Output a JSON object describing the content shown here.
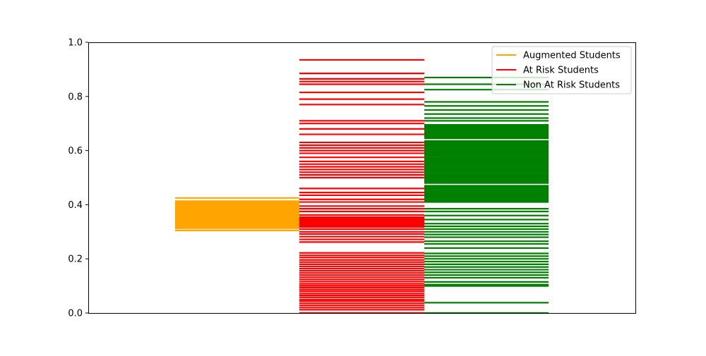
{
  "chart_data": {
    "type": "strip",
    "title": "",
    "xlabel": "",
    "ylabel": "",
    "ylim": [
      0,
      1
    ],
    "yticks": [
      "0.0",
      "0.2",
      "0.4",
      "0.6",
      "0.8",
      "1.0"
    ],
    "legend_position": "top-right",
    "grid": false,
    "series": [
      {
        "name": "Augmented Students",
        "color": "#ffa500",
        "values": [
          0.305,
          0.313,
          0.315,
          0.318,
          0.32,
          0.323,
          0.326,
          0.329,
          0.332,
          0.335,
          0.338,
          0.341,
          0.344,
          0.347,
          0.35,
          0.353,
          0.356,
          0.359,
          0.362,
          0.365,
          0.368,
          0.371,
          0.374,
          0.377,
          0.38,
          0.383,
          0.386,
          0.389,
          0.392,
          0.395,
          0.398,
          0.401,
          0.404,
          0.407,
          0.41,
          0.413,
          0.425
        ]
      },
      {
        "name": "At Risk Students",
        "color": "#ff0000",
        "values": [
          0.0,
          0.012,
          0.02,
          0.028,
          0.036,
          0.044,
          0.05,
          0.058,
          0.065,
          0.072,
          0.08,
          0.087,
          0.094,
          0.101,
          0.108,
          0.116,
          0.124,
          0.132,
          0.14,
          0.148,
          0.156,
          0.164,
          0.172,
          0.18,
          0.188,
          0.196,
          0.205,
          0.213,
          0.222,
          0.262,
          0.272,
          0.282,
          0.292,
          0.3,
          0.31,
          0.318,
          0.322,
          0.326,
          0.33,
          0.334,
          0.338,
          0.342,
          0.346,
          0.35,
          0.354,
          0.362,
          0.375,
          0.385,
          0.395,
          0.41,
          0.42,
          0.435,
          0.445,
          0.46,
          0.5,
          0.51,
          0.52,
          0.53,
          0.54,
          0.55,
          0.56,
          0.575,
          0.59,
          0.6,
          0.61,
          0.62,
          0.63,
          0.66,
          0.68,
          0.7,
          0.71,
          0.77,
          0.79,
          0.815,
          0.845,
          0.855,
          0.865,
          0.885,
          0.935
        ]
      },
      {
        "name": "Non At Risk Students",
        "color": "#008000",
        "values": [
          0.0,
          0.038,
          0.1,
          0.105,
          0.115,
          0.13,
          0.14,
          0.15,
          0.16,
          0.17,
          0.18,
          0.19,
          0.2,
          0.21,
          0.22,
          0.24,
          0.255,
          0.265,
          0.28,
          0.29,
          0.3,
          0.31,
          0.32,
          0.33,
          0.345,
          0.36,
          0.375,
          0.385,
          0.41,
          0.415,
          0.42,
          0.425,
          0.43,
          0.435,
          0.44,
          0.445,
          0.45,
          0.455,
          0.46,
          0.465,
          0.47,
          0.48,
          0.485,
          0.49,
          0.495,
          0.5,
          0.505,
          0.51,
          0.515,
          0.52,
          0.525,
          0.53,
          0.535,
          0.54,
          0.545,
          0.55,
          0.555,
          0.56,
          0.565,
          0.57,
          0.575,
          0.58,
          0.585,
          0.59,
          0.595,
          0.6,
          0.605,
          0.61,
          0.615,
          0.62,
          0.625,
          0.63,
          0.635,
          0.645,
          0.65,
          0.655,
          0.66,
          0.665,
          0.67,
          0.675,
          0.68,
          0.685,
          0.69,
          0.695,
          0.71,
          0.72,
          0.735,
          0.75,
          0.765,
          0.78,
          0.825,
          0.845,
          0.87
        ]
      }
    ]
  }
}
